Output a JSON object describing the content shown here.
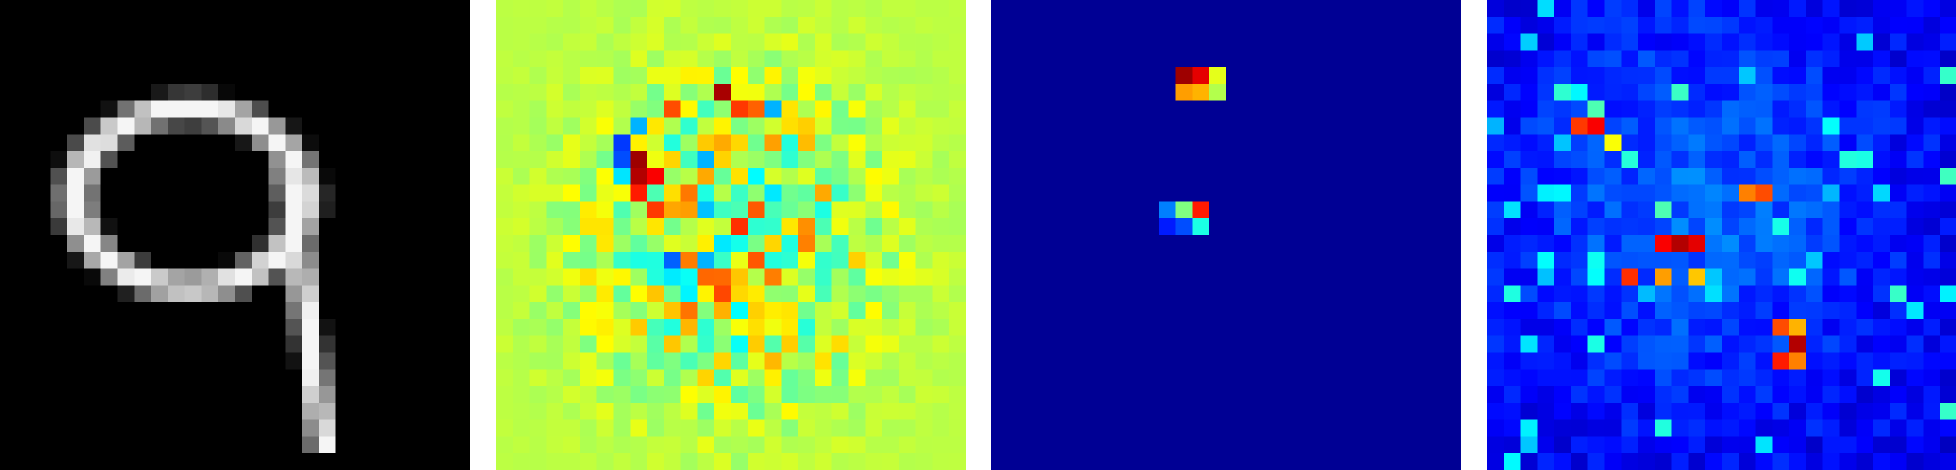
{
  "grid_size": 28,
  "panels": [
    {
      "name": "digit-input-panel",
      "colormap": "gray",
      "background": "#000000"
    },
    {
      "name": "gradient-map-panel",
      "colormap": "jet",
      "background": "#8cfc73"
    },
    {
      "name": "sparse-map-panel",
      "colormap": "jet",
      "background": "#00007f"
    },
    {
      "name": "activation-map-panel",
      "colormap": "jet",
      "background": "#0000c0"
    }
  ]
}
